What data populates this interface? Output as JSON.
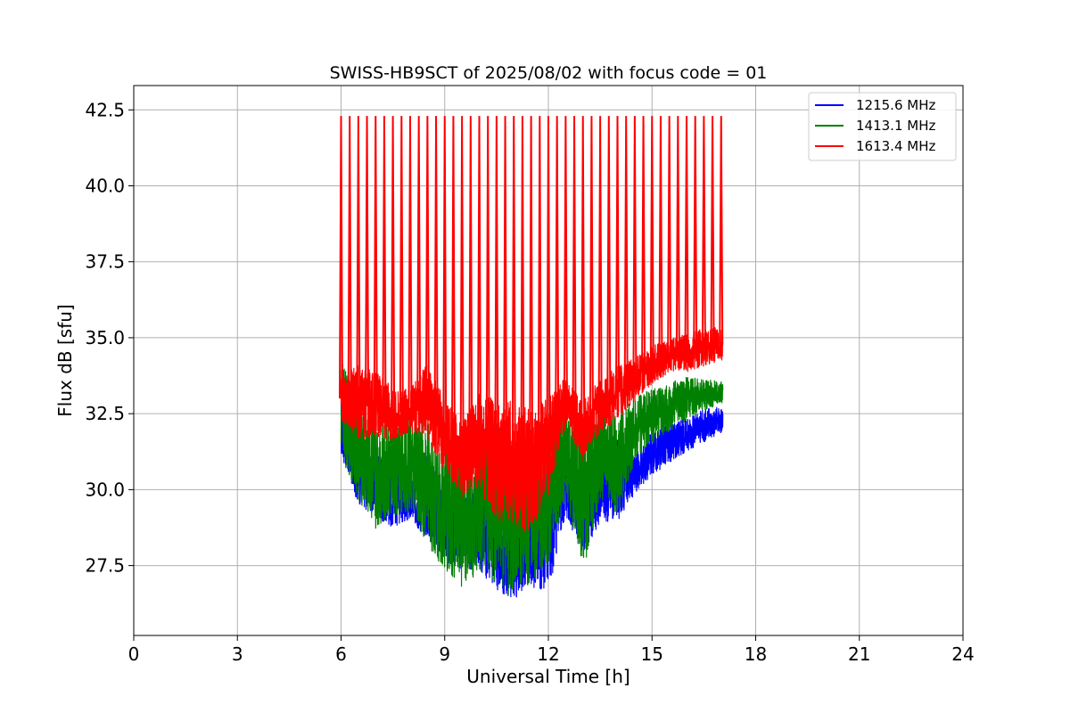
{
  "chart_data": {
    "type": "line",
    "title": "SWISS-HB9SCT of 2025/08/02 with focus code = 01",
    "xlabel": "Universal Time [h]",
    "ylabel": "Flux dB [sfu]",
    "xlim": [
      0,
      24
    ],
    "ylim": [
      25.2,
      43.3
    ],
    "xticks": [
      0,
      3,
      6,
      9,
      12,
      15,
      18,
      21,
      24
    ],
    "xtick_labels": [
      "0",
      "3",
      "6",
      "9",
      "12",
      "15",
      "18",
      "21",
      "24"
    ],
    "yticks": [
      27.5,
      30.0,
      32.5,
      35.0,
      37.5,
      40.0,
      42.5
    ],
    "ytick_labels": [
      "27.5",
      "30.0",
      "32.5",
      "35.0",
      "37.5",
      "40.0",
      "42.5"
    ],
    "grid": true,
    "legend_position": "upper-right",
    "data_start_hour": 6.0,
    "data_end_hour": 17.05,
    "calibration_spikes": {
      "series": "1613.4 MHz",
      "peak_value": 42.3,
      "hours": [
        6.0,
        6.25,
        6.5,
        6.75,
        7.0,
        7.25,
        7.5,
        7.75,
        8.0,
        8.25,
        8.5,
        8.75,
        9.0,
        9.25,
        9.5,
        9.75,
        10.0,
        10.25,
        10.5,
        10.75,
        11.0,
        11.25,
        11.5,
        11.75,
        12.0,
        12.25,
        12.5,
        12.75,
        13.0,
        13.25,
        13.5,
        13.75,
        14.0,
        14.25,
        14.5,
        14.75,
        15.0,
        15.25,
        15.5,
        15.75,
        16.0,
        16.25,
        16.5,
        16.75,
        17.0
      ]
    },
    "x": [
      6.0,
      6.5,
      7.0,
      7.5,
      8.0,
      8.5,
      9.0,
      9.5,
      10.0,
      10.5,
      11.0,
      11.5,
      12.0,
      12.5,
      13.0,
      13.5,
      14.0,
      14.5,
      15.0,
      15.5,
      16.0,
      16.5,
      17.0
    ],
    "series": [
      {
        "name": "1215.6 MHz",
        "color": "#0000ff",
        "values": [
          32.0,
          30.6,
          30.2,
          30.0,
          29.6,
          29.8,
          28.8,
          28.5,
          28.8,
          28.2,
          28.0,
          28.4,
          28.8,
          30.5,
          29.0,
          30.0,
          30.3,
          30.5,
          31.2,
          31.6,
          31.8,
          32.1,
          32.3
        ],
        "min_values": [
          31.0,
          29.4,
          29.0,
          28.6,
          28.9,
          28.2,
          27.5,
          27.2,
          27.2,
          26.5,
          26.2,
          26.6,
          26.4,
          29.0,
          27.8,
          28.8,
          28.8,
          29.8,
          30.4,
          30.8,
          31.2,
          31.5,
          31.8
        ]
      },
      {
        "name": "1413.1 MHz",
        "color": "#008000",
        "values": [
          32.8,
          31.2,
          30.6,
          30.6,
          30.9,
          30.2,
          29.6,
          29.0,
          29.6,
          29.6,
          29.0,
          29.3,
          29.8,
          31.2,
          29.8,
          31.4,
          30.8,
          32.0,
          32.4,
          32.7,
          33.0,
          33.1,
          33.2
        ],
        "min_values": [
          31.0,
          29.5,
          28.5,
          28.8,
          29.1,
          28.0,
          27.0,
          26.5,
          27.0,
          26.3,
          26.2,
          26.6,
          27.2,
          29.5,
          27.0,
          29.5,
          29.0,
          30.8,
          31.4,
          31.8,
          32.2,
          32.5,
          32.8
        ]
      },
      {
        "name": "1613.4 MHz",
        "color": "#ff0000",
        "values": [
          33.0,
          32.9,
          32.8,
          32.5,
          32.6,
          32.9,
          31.8,
          31.0,
          31.6,
          31.0,
          30.8,
          30.6,
          31.4,
          32.9,
          31.9,
          32.8,
          33.2,
          33.6,
          34.1,
          34.4,
          34.5,
          34.7,
          34.8
        ],
        "min_values": [
          32.2,
          31.5,
          31.6,
          31.5,
          31.8,
          31.5,
          30.5,
          29.6,
          29.8,
          28.7,
          28.5,
          28.3,
          29.6,
          32.0,
          30.8,
          31.8,
          32.2,
          32.8,
          33.4,
          33.8,
          33.8,
          34.0,
          34.2
        ]
      }
    ]
  }
}
